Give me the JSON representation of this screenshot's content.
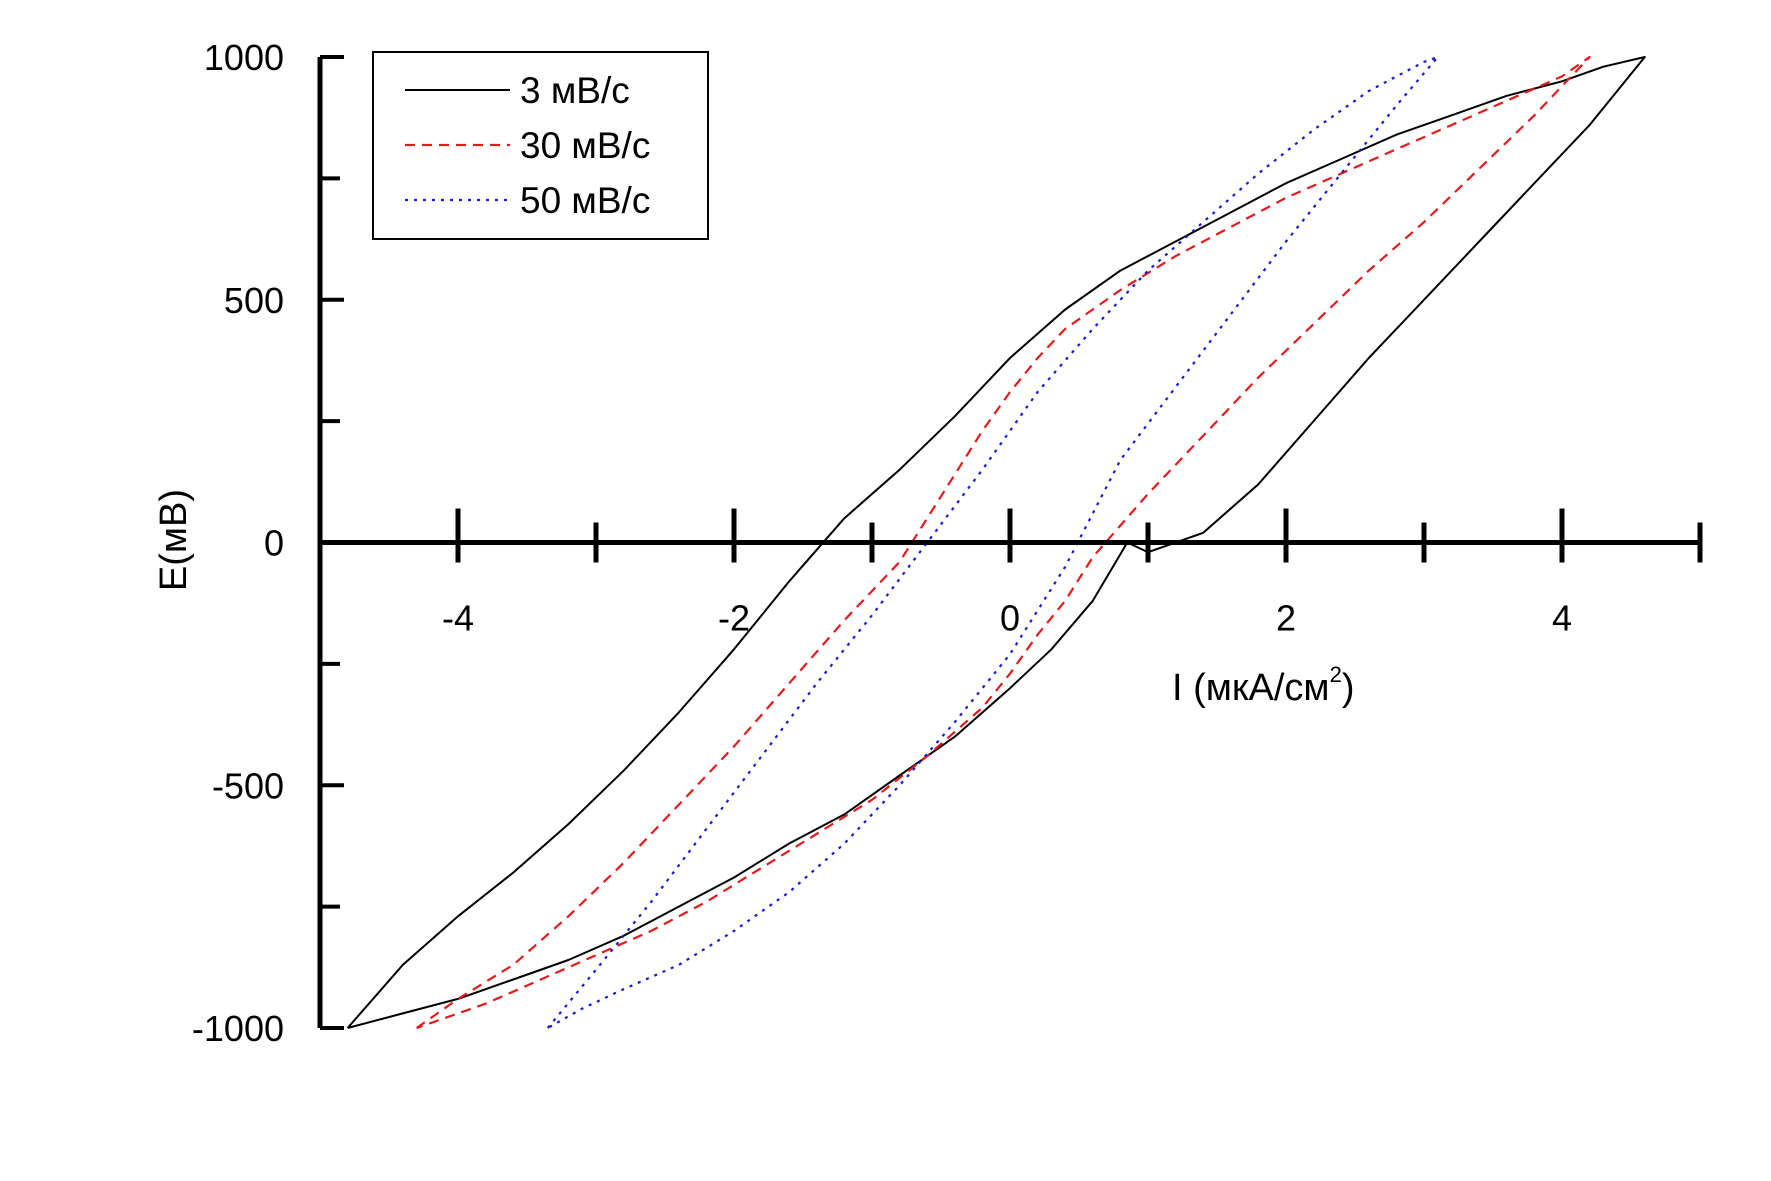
{
  "chart_data": {
    "type": "line",
    "title": "",
    "xlabel": "I (мкА/см",
    "xlabel_sup": "2",
    "xlabel_end": ")",
    "ylabel": "E(мВ)",
    "xlim": [
      -5,
      5
    ],
    "ylim": [
      -1000,
      1000
    ],
    "x_ticks": [
      -4,
      -2,
      0,
      2,
      4
    ],
    "x_minor_ticks": [
      -3,
      -1,
      1,
      3
    ],
    "y_ticks": [
      -1000,
      -500,
      0,
      500,
      1000
    ],
    "y_minor_ticks": [
      -750,
      -250,
      250,
      750
    ],
    "grid": false,
    "legend_position": "top-left",
    "series": [
      {
        "name": "3 мВ/с",
        "color": "#000000",
        "dash": "solid",
        "x": [
          -4.8,
          -4.4,
          -4.0,
          -3.6,
          -3.2,
          -2.8,
          -2.4,
          -2.0,
          -1.6,
          -1.2,
          -0.8,
          -0.4,
          0.0,
          0.4,
          0.8,
          1.2,
          1.6,
          2.0,
          2.4,
          2.8,
          3.2,
          3.6,
          4.0,
          4.3,
          4.6,
          4.2,
          3.8,
          3.4,
          3.0,
          2.6,
          2.2,
          1.8,
          1.4,
          1.0,
          0.85,
          0.6,
          0.3,
          0.0,
          -0.4,
          -0.8,
          -1.2,
          -1.6,
          -2.0,
          -2.4,
          -2.8,
          -3.2,
          -3.6,
          -4.0,
          -4.4,
          -4.8
        ],
        "y": [
          -1000,
          -870,
          -770,
          -680,
          -580,
          -470,
          -350,
          -220,
          -80,
          50,
          150,
          260,
          380,
          480,
          560,
          620,
          680,
          740,
          790,
          840,
          880,
          920,
          950,
          980,
          1000,
          860,
          740,
          620,
          500,
          380,
          250,
          120,
          20,
          -20,
          0,
          -120,
          -220,
          -300,
          -400,
          -480,
          -560,
          -620,
          -690,
          -750,
          -810,
          -860,
          -900,
          -940,
          -970,
          -1000
        ]
      },
      {
        "name": "30 мВ/с",
        "color": "#e41a1c",
        "dash": "dashed",
        "x": [
          -4.3,
          -4.0,
          -3.6,
          -3.2,
          -2.8,
          -2.4,
          -2.0,
          -1.6,
          -1.2,
          -0.8,
          -0.6,
          -0.4,
          -0.2,
          0.0,
          0.2,
          0.4,
          0.8,
          1.2,
          1.6,
          2.0,
          2.4,
          2.8,
          3.2,
          3.6,
          4.0,
          4.2,
          3.8,
          3.4,
          3.0,
          2.6,
          2.2,
          1.8,
          1.4,
          1.0,
          0.6,
          0.4,
          0.2,
          0.0,
          -0.2,
          -0.6,
          -1.0,
          -1.4,
          -1.8,
          -2.2,
          -2.6,
          -3.0,
          -3.4,
          -3.8,
          -4.1,
          -4.3
        ],
        "y": [
          -1000,
          -940,
          -870,
          -770,
          -660,
          -540,
          -420,
          -290,
          -160,
          -40,
          50,
          140,
          230,
          310,
          380,
          440,
          520,
          590,
          650,
          710,
          760,
          810,
          860,
          910,
          960,
          1000,
          880,
          770,
          660,
          560,
          450,
          340,
          220,
          100,
          -30,
          -120,
          -190,
          -270,
          -340,
          -440,
          -530,
          -600,
          -670,
          -740,
          -800,
          -850,
          -900,
          -950,
          -980,
          -1000
        ]
      },
      {
        "name": "50 мВ/с",
        "color": "#1a1acd",
        "dash": "dotted",
        "x": [
          -3.35,
          -3.0,
          -2.6,
          -2.2,
          -1.8,
          -1.4,
          -1.0,
          -0.6,
          -0.2,
          0.0,
          0.2,
          0.6,
          1.0,
          1.4,
          1.8,
          2.2,
          2.6,
          3.0,
          3.1,
          2.8,
          2.4,
          2.0,
          1.6,
          1.2,
          0.8,
          0.6,
          0.4,
          0.2,
          0.0,
          -0.4,
          -0.8,
          -1.2,
          -1.6,
          -2.0,
          -2.4,
          -2.8,
          -3.1,
          -3.35
        ],
        "y": [
          -1000,
          -880,
          -740,
          -590,
          -440,
          -290,
          -150,
          0,
          150,
          230,
          310,
          440,
          560,
          660,
          760,
          850,
          930,
          990,
          1000,
          900,
          760,
          620,
          470,
          320,
          170,
          60,
          -50,
          -140,
          -230,
          -370,
          -500,
          -620,
          -720,
          -800,
          -870,
          -920,
          -960,
          -1000
        ]
      }
    ]
  }
}
